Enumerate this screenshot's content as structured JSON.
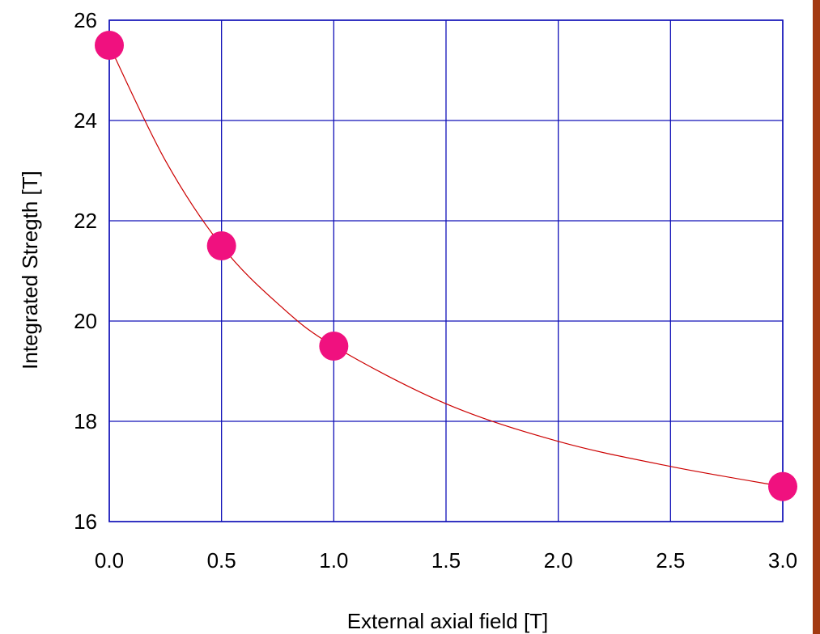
{
  "chart_data": {
    "type": "scatter",
    "title": "",
    "xlabel": "External axial field [T]",
    "ylabel": "Integrated Stregth [T]",
    "xlim": [
      0,
      3
    ],
    "ylim": [
      16,
      26
    ],
    "x_ticks": [
      "0.0",
      "0.5",
      "1.0",
      "1.5",
      "2.0",
      "2.5",
      "3.0"
    ],
    "y_ticks": [
      "16",
      "18",
      "20",
      "22",
      "24",
      "26"
    ],
    "grid": true,
    "series": [
      {
        "type": "scatter",
        "color": "#f0117f",
        "points": [
          {
            "x": 0.0,
            "y": 25.5
          },
          {
            "x": 0.5,
            "y": 21.5
          },
          {
            "x": 1.0,
            "y": 19.5
          },
          {
            "x": 3.0,
            "y": 16.7
          }
        ]
      },
      {
        "type": "line",
        "color": "#cc0000",
        "points": [
          {
            "x": 0.0,
            "y": 25.5
          },
          {
            "x": 0.25,
            "y": 23.2
          },
          {
            "x": 0.5,
            "y": 21.5
          },
          {
            "x": 0.75,
            "y": 20.35
          },
          {
            "x": 1.0,
            "y": 19.5
          },
          {
            "x": 1.5,
            "y": 18.35
          },
          {
            "x": 2.0,
            "y": 17.6
          },
          {
            "x": 2.5,
            "y": 17.1
          },
          {
            "x": 3.0,
            "y": 16.7
          }
        ]
      }
    ],
    "colors": {
      "grid": "#1010b8",
      "right_bar": "#a33a12"
    }
  }
}
